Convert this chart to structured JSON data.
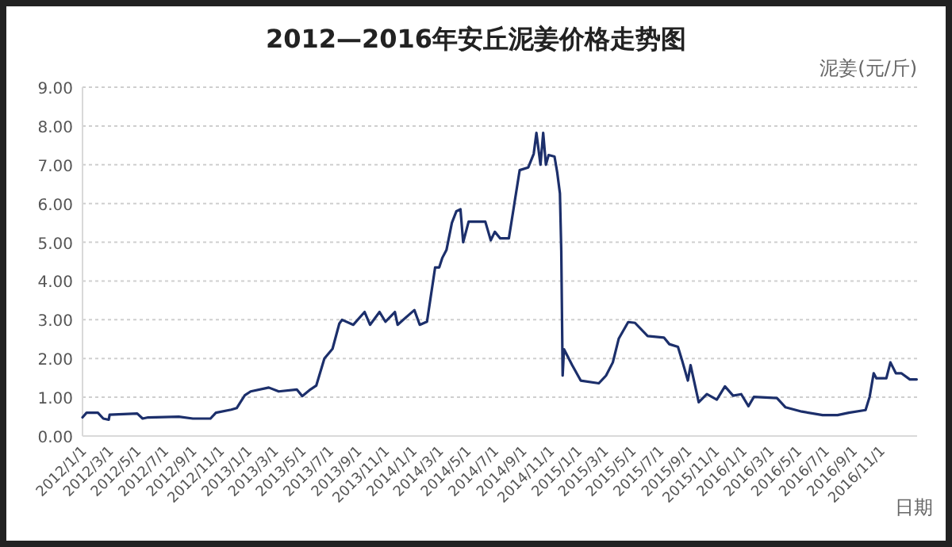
{
  "chart_data": {
    "type": "line",
    "title": "2012—2016年安丘泥姜价格走势图",
    "xlabel": "日期",
    "ylabel": "泥姜(元/斤)",
    "x": [
      "2012-01-01",
      "2012-01-10",
      "2012-02-04",
      "2012-02-16",
      "2012-02-28",
      "2012-03-01",
      "2012-05-01",
      "2012-05-13",
      "2012-05-25",
      "2012-08-01",
      "2012-09-01",
      "2012-10-10",
      "2012-10-22",
      "2012-11-25",
      "2012-12-07",
      "2012-12-25",
      "2013-01-07",
      "2013-02-16",
      "2013-03-10",
      "2013-04-19",
      "2013-05-01",
      "2013-05-19",
      "2013-06-01",
      "2013-06-19",
      "2013-07-07",
      "2013-07-22",
      "2013-07-28",
      "2013-08-22",
      "2013-09-16",
      "2013-09-28",
      "2013-10-19",
      "2013-11-01",
      "2013-11-22",
      "2013-11-28",
      "2014-01-04",
      "2014-01-16",
      "2014-02-01",
      "2014-02-19",
      "2014-02-28",
      "2014-03-07",
      "2014-03-16",
      "2014-03-28",
      "2014-04-07",
      "2014-04-16",
      "2014-04-22",
      "2014-05-04",
      "2014-06-10",
      "2014-06-22",
      "2014-07-01",
      "2014-07-13",
      "2014-08-01",
      "2014-08-13",
      "2014-08-25",
      "2014-09-13",
      "2014-09-25",
      "2014-10-01",
      "2014-10-10",
      "2014-10-16",
      "2014-10-22",
      "2014-10-28",
      "2014-11-10",
      "2014-11-16",
      "2014-11-22",
      "2014-11-25",
      "2014-11-28",
      "2014-12-01",
      "2014-12-19",
      "2015-01-07",
      "2015-02-16",
      "2015-03-04",
      "2015-03-19",
      "2015-04-01",
      "2015-04-22",
      "2015-05-07",
      "2015-06-04",
      "2015-07-10",
      "2015-07-22",
      "2015-08-10",
      "2015-08-19",
      "2015-09-01",
      "2015-09-07",
      "2015-09-25",
      "2015-10-13",
      "2015-11-04",
      "2015-11-22",
      "2015-12-10",
      "2015-12-28",
      "2016-01-13",
      "2016-01-25",
      "2016-03-16",
      "2016-04-04",
      "2016-05-10",
      "2016-06-25",
      "2016-07-28",
      "2016-08-22",
      "2016-09-28",
      "2016-10-07",
      "2016-10-16",
      "2016-10-22",
      "2016-11-13",
      "2016-11-22",
      "2016-12-04",
      "2016-12-16",
      "2017-01-04",
      "2017-01-19"
    ],
    "series": [
      {
        "color": "#1c2f6b",
        "values": [
          0.48,
          0.6,
          0.6,
          0.45,
          0.42,
          0.55,
          0.58,
          0.45,
          0.48,
          0.5,
          0.45,
          0.45,
          0.6,
          0.68,
          0.72,
          1.05,
          1.15,
          1.25,
          1.15,
          1.2,
          1.03,
          1.2,
          1.3,
          2.0,
          2.25,
          2.9,
          3.0,
          2.87,
          3.2,
          2.87,
          3.2,
          2.95,
          3.2,
          2.87,
          3.25,
          2.87,
          2.95,
          4.35,
          4.35,
          4.6,
          4.8,
          5.5,
          5.8,
          5.85,
          5.0,
          5.53,
          5.53,
          5.05,
          5.27,
          5.1,
          5.1,
          5.98,
          6.86,
          6.93,
          7.28,
          7.82,
          7.0,
          7.82,
          7.0,
          7.25,
          7.21,
          6.8,
          6.26,
          4.76,
          1.56,
          2.24,
          1.83,
          1.43,
          1.36,
          1.56,
          1.9,
          2.51,
          2.94,
          2.92,
          2.58,
          2.54,
          2.37,
          2.3,
          1.96,
          1.43,
          1.83,
          0.87,
          1.08,
          0.94,
          1.28,
          1.04,
          1.08,
          0.77,
          1.01,
          0.98,
          0.74,
          0.63,
          0.54,
          0.54,
          0.6,
          0.67,
          1.01,
          1.62,
          1.49,
          1.49,
          1.9,
          1.62,
          1.62,
          1.46,
          1.46
        ]
      }
    ],
    "xlim": [
      "2012-01-01",
      "2017-01-20"
    ],
    "xticks": [
      {
        "value": "2012-01-01",
        "label": "2012/1/1"
      },
      {
        "value": "2012-03-01",
        "label": "2012/3/1"
      },
      {
        "value": "2012-05-01",
        "label": "2012/5/1"
      },
      {
        "value": "2012-07-01",
        "label": "2012/7/1"
      },
      {
        "value": "2012-09-01",
        "label": "2012/9/1"
      },
      {
        "value": "2012-11-01",
        "label": "2012/11/1"
      },
      {
        "value": "2013-01-01",
        "label": "2013/1/1"
      },
      {
        "value": "2013-03-01",
        "label": "2013/3/1"
      },
      {
        "value": "2013-05-01",
        "label": "2013/5/1"
      },
      {
        "value": "2013-07-01",
        "label": "2013/7/1"
      },
      {
        "value": "2013-09-01",
        "label": "2013/9/1"
      },
      {
        "value": "2013-11-01",
        "label": "2013/11/1"
      },
      {
        "value": "2014-01-01",
        "label": "2014/1/1"
      },
      {
        "value": "2014-03-01",
        "label": "2014/3/1"
      },
      {
        "value": "2014-05-01",
        "label": "2014/5/1"
      },
      {
        "value": "2014-07-01",
        "label": "2014/7/1"
      },
      {
        "value": "2014-09-01",
        "label": "2014/9/1"
      },
      {
        "value": "2014-11-01",
        "label": "2014/11/1"
      },
      {
        "value": "2015-01-01",
        "label": "2015/1/1"
      },
      {
        "value": "2015-03-01",
        "label": "2015/3/1"
      },
      {
        "value": "2015-05-01",
        "label": "2015/5/1"
      },
      {
        "value": "2015-07-01",
        "label": "2015/7/1"
      },
      {
        "value": "2015-09-01",
        "label": "2015/9/1"
      },
      {
        "value": "2015-11-01",
        "label": "2015/11/1"
      },
      {
        "value": "2016-01-01",
        "label": "2016/1/1"
      },
      {
        "value": "2016-03-01",
        "label": "2016/3/1"
      },
      {
        "value": "2016-05-01",
        "label": "2016/5/1"
      },
      {
        "value": "2016-07-01",
        "label": "2016/7/1"
      },
      {
        "value": "2016-09-01",
        "label": "2016/9/1"
      },
      {
        "value": "2016-11-01",
        "label": "2016/11/1"
      }
    ],
    "ylim": [
      0,
      9
    ],
    "yticks": [
      {
        "value": 0,
        "label": "0.00"
      },
      {
        "value": 1,
        "label": "1.00"
      },
      {
        "value": 2,
        "label": "2.00"
      },
      {
        "value": 3,
        "label": "3.00"
      },
      {
        "value": 4,
        "label": "4.00"
      },
      {
        "value": 5,
        "label": "5.00"
      },
      {
        "value": 6,
        "label": "6.00"
      },
      {
        "value": 7,
        "label": "7.00"
      },
      {
        "value": 8,
        "label": "8.00"
      },
      {
        "value": 9,
        "label": "9.00"
      }
    ],
    "grid": "y",
    "line_style": "solid"
  }
}
